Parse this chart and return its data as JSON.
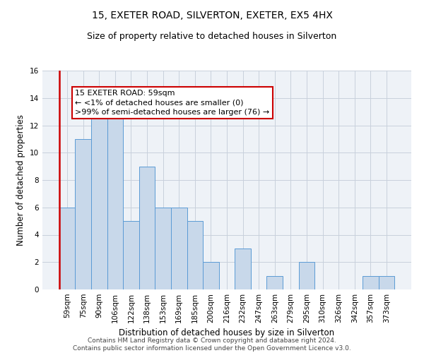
{
  "title1": "15, EXETER ROAD, SILVERTON, EXETER, EX5 4HX",
  "title2": "Size of property relative to detached houses in Silverton",
  "xlabel": "Distribution of detached houses by size in Silverton",
  "ylabel": "Number of detached properties",
  "categories": [
    "59sqm",
    "75sqm",
    "90sqm",
    "106sqm",
    "122sqm",
    "138sqm",
    "153sqm",
    "169sqm",
    "185sqm",
    "200sqm",
    "216sqm",
    "232sqm",
    "247sqm",
    "263sqm",
    "279sqm",
    "295sqm",
    "310sqm",
    "326sqm",
    "342sqm",
    "357sqm",
    "373sqm"
  ],
  "values": [
    6,
    11,
    13,
    13,
    5,
    9,
    6,
    6,
    5,
    2,
    0,
    3,
    0,
    1,
    0,
    2,
    0,
    0,
    0,
    1,
    1
  ],
  "bar_color": "#c8d8ea",
  "bar_edge_color": "#5b9bd5",
  "highlight_line_color": "#cc0000",
  "annotation_line1": "15 EXETER ROAD: 59sqm",
  "annotation_line2": "← <1% of detached houses are smaller (0)",
  "annotation_line3": ">99% of semi-detached houses are larger (76) →",
  "annotation_box_color": "#ffffff",
  "annotation_box_edge_color": "#cc0000",
  "ylim": [
    0,
    16
  ],
  "yticks": [
    0,
    2,
    4,
    6,
    8,
    10,
    12,
    14,
    16
  ],
  "footer": "Contains HM Land Registry data © Crown copyright and database right 2024.\nContains public sector information licensed under the Open Government Licence v3.0.",
  "bg_color": "#eef2f7",
  "grid_color": "#c8d0dc",
  "title1_fontsize": 10,
  "title2_fontsize": 9,
  "xlabel_fontsize": 8.5,
  "ylabel_fontsize": 8.5,
  "tick_fontsize": 7.5,
  "footer_fontsize": 6.5,
  "annot_fontsize": 8
}
